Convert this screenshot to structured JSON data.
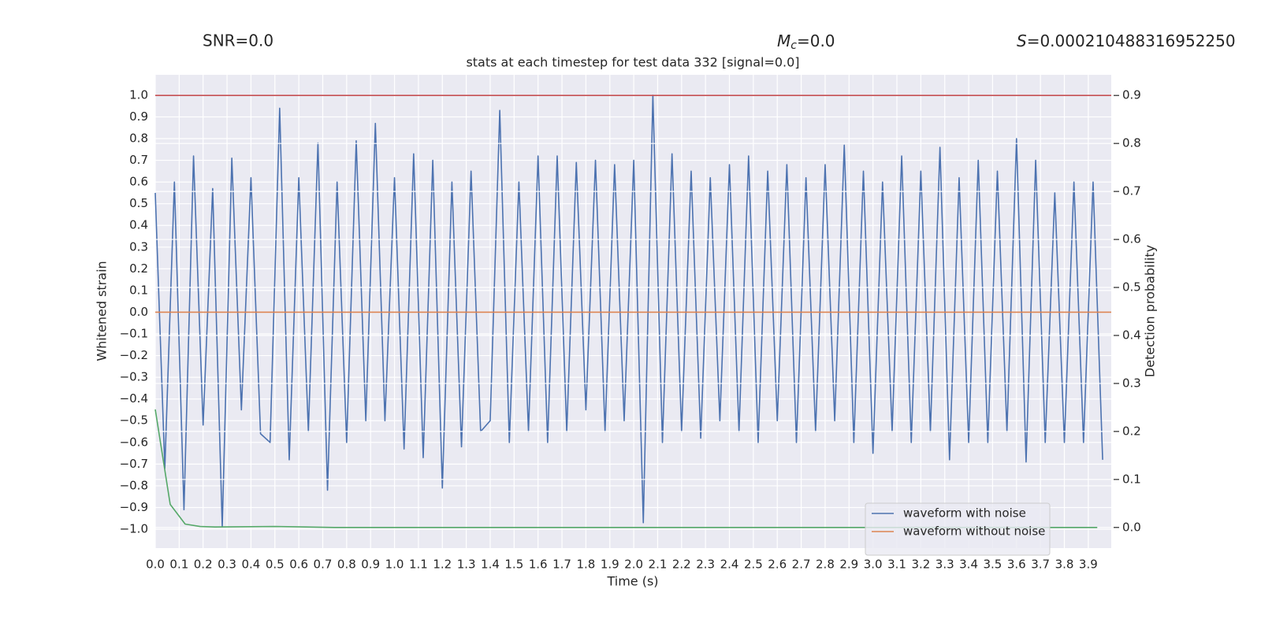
{
  "chart_data": {
    "type": "line",
    "title": "stats at each timestep for test data 332 [signal=0.0]",
    "annotations": [
      {
        "text": "SNR=0.0"
      },
      {
        "symbol": "M",
        "sub": "c",
        "text": "=0.0"
      },
      {
        "symbol": "S",
        "text": "=0.000210488316952250"
      }
    ],
    "xlabel": "Time (s)",
    "ylabel": "Whitened strain",
    "y2label": "Detection probability",
    "xlim": [
      0,
      3.996
    ],
    "ylim": [
      -1.087,
      1.094
    ],
    "y2lim": [
      -0.043,
      0.943
    ],
    "xticks": [
      {
        "value": 0,
        "label": "0.0"
      },
      0.1,
      0.2,
      0.3,
      0.4,
      0.5,
      0.6,
      0.7,
      0.8,
      0.9,
      {
        "value": 1,
        "label": "1.0"
      },
      1.1,
      1.2,
      1.3,
      1.4,
      1.5,
      1.6,
      1.7,
      1.8,
      1.9,
      {
        "value": 2,
        "label": "2.0"
      },
      2.1,
      2.2,
      2.3,
      2.4,
      2.5,
      2.6,
      2.7,
      2.8,
      2.9,
      {
        "value": 3,
        "label": "3.0"
      },
      3.1,
      3.2,
      3.3,
      3.4,
      3.5,
      3.6,
      3.7,
      3.8,
      3.9
    ],
    "yticks": [
      {
        "value": -1,
        "label": "−1.0"
      },
      {
        "value": -0.9,
        "label": "−0.9"
      },
      {
        "value": -0.8,
        "label": "−0.8"
      },
      {
        "value": -0.7,
        "label": "−0.7"
      },
      {
        "value": -0.6,
        "label": "−0.6"
      },
      {
        "value": -0.5,
        "label": "−0.5"
      },
      {
        "value": -0.4,
        "label": "−0.4"
      },
      {
        "value": -0.3,
        "label": "−0.3"
      },
      {
        "value": -0.2,
        "label": "−0.2"
      },
      {
        "value": -0.1,
        "label": "−0.1"
      },
      {
        "value": 0,
        "label": "0.0"
      },
      0.1,
      0.2,
      0.3,
      0.4,
      0.5,
      0.6,
      0.7,
      0.8,
      0.9,
      {
        "value": 1,
        "label": "1.0"
      }
    ],
    "y2ticks": [
      {
        "value": 0,
        "label": "0.0"
      },
      0.1,
      0.2,
      0.3,
      0.4,
      0.5,
      0.6,
      0.7,
      0.8,
      0.9
    ],
    "grid": true,
    "legend": "lower right",
    "series": [
      {
        "name": "waveform with noise",
        "color": "#4c72b0",
        "axis": "y",
        "x": [
          0,
          0.04,
          0.08,
          0.12,
          0.16,
          0.2,
          0.24,
          0.28,
          0.32,
          0.36,
          0.4,
          0.44,
          0.48,
          0.52,
          0.56,
          0.6,
          0.64,
          0.68,
          0.72,
          0.76,
          0.8,
          0.84,
          0.88,
          0.92,
          0.96,
          1.0,
          1.04,
          1.08,
          1.12,
          1.16,
          1.2,
          1.24,
          1.28,
          1.32,
          1.36,
          1.4,
          1.44,
          1.48,
          1.52,
          1.56,
          1.6,
          1.64,
          1.68,
          1.72,
          1.76,
          1.8,
          1.84,
          1.88,
          1.92,
          1.96,
          2.0,
          2.04,
          2.08,
          2.12,
          2.16,
          2.2,
          2.24,
          2.28,
          2.32,
          2.36,
          2.4,
          2.44,
          2.48,
          2.52,
          2.56,
          2.6,
          2.64,
          2.68,
          2.72,
          2.76,
          2.8,
          2.84,
          2.88,
          2.92,
          2.96,
          3.0,
          3.04,
          3.08,
          3.12,
          3.16,
          3.2,
          3.24,
          3.28,
          3.32,
          3.36,
          3.4,
          3.44,
          3.48,
          3.52,
          3.56,
          3.6,
          3.64,
          3.68,
          3.72,
          3.76,
          3.8,
          3.84,
          3.88,
          3.92,
          3.96
        ],
        "values": [
          0.55,
          -0.72,
          0.6,
          -0.91,
          0.72,
          -0.52,
          0.57,
          -0.99,
          0.71,
          -0.45,
          0.62,
          -0.56,
          -0.6,
          0.94,
          -0.68,
          0.62,
          -0.55,
          0.78,
          -0.82,
          0.6,
          -0.6,
          0.79,
          -0.5,
          0.87,
          -0.5,
          0.62,
          -0.63,
          0.73,
          -0.67,
          0.7,
          -0.81,
          0.6,
          -0.62,
          0.65,
          -0.55,
          -0.5,
          0.93,
          -0.6,
          0.6,
          -0.55,
          0.72,
          -0.6,
          0.72,
          -0.55,
          0.69,
          -0.45,
          0.7,
          -0.55,
          0.68,
          -0.5,
          0.7,
          -0.97,
          1.0,
          -0.6,
          0.73,
          -0.55,
          0.65,
          -0.58,
          0.62,
          -0.5,
          0.68,
          -0.55,
          0.72,
          -0.6,
          0.65,
          -0.5,
          0.68,
          -0.6,
          0.62,
          -0.55,
          0.68,
          -0.5,
          0.77,
          -0.6,
          0.65,
          -0.65,
          0.6,
          -0.55,
          0.72,
          -0.6,
          0.65,
          -0.55,
          0.76,
          -0.68,
          0.62,
          -0.6,
          0.7,
          -0.6,
          0.65,
          -0.55,
          0.8,
          -0.69,
          0.7,
          -0.6,
          0.55,
          -0.6,
          0.6,
          -0.6,
          0.6,
          -0.68
        ]
      },
      {
        "name": "waveform without noise",
        "color": "#dd8452",
        "axis": "y",
        "x": [
          0,
          3.996
        ],
        "values": [
          0,
          0
        ]
      },
      {
        "color": "#c44e52",
        "axis": "y2",
        "x": [
          0,
          3.996
        ],
        "values": [
          0.9,
          0.9
        ]
      },
      {
        "color": "#55a868",
        "axis": "y2",
        "x": [
          0,
          0.0625,
          0.125,
          0.1875,
          0.25,
          0.5,
          0.75,
          3.9375
        ],
        "values": [
          0.246,
          0.048,
          0.007,
          0.002,
          0.001,
          0.002,
          0,
          0
        ]
      }
    ]
  }
}
